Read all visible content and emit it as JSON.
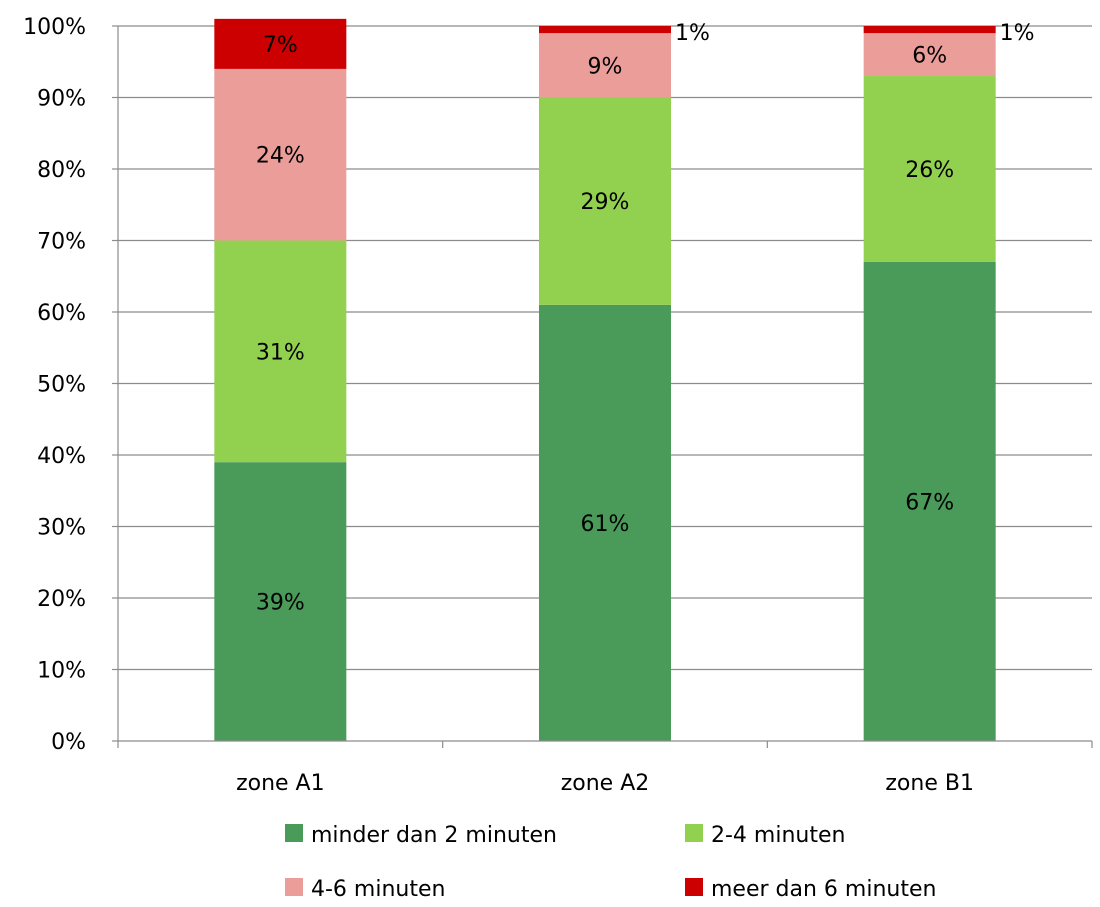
{
  "chart_data": {
    "type": "bar",
    "stacked": true,
    "categories": [
      "zone A1",
      "zone A2",
      "zone B1"
    ],
    "series": [
      {
        "name": "minder dan 2 minuten",
        "color": "#4a9a5a",
        "values": [
          39,
          61,
          67
        ],
        "labels": [
          "39%",
          "61%",
          "67%"
        ]
      },
      {
        "name": "2-4 minuten",
        "color": "#92d050",
        "values": [
          31,
          29,
          26
        ],
        "labels": [
          "31%",
          "29%",
          "26%"
        ]
      },
      {
        "name": "4-6 minuten",
        "color": "#eb9d9a",
        "values": [
          24,
          9,
          6
        ],
        "labels": [
          "24%",
          "9%",
          "6%"
        ]
      },
      {
        "name": "meer dan 6 minuten",
        "color": "#cc0000",
        "values": [
          7,
          1,
          1
        ],
        "labels": [
          "7%",
          "1%",
          "1%"
        ]
      }
    ],
    "ylim": [
      0,
      100
    ],
    "yticks": [
      "0%",
      "10%",
      "20%",
      "30%",
      "40%",
      "50%",
      "60%",
      "70%",
      "80%",
      "90%",
      "100%"
    ],
    "grid": true,
    "legend_position": "bottom",
    "title": "",
    "xlabel": "",
    "ylabel": ""
  }
}
